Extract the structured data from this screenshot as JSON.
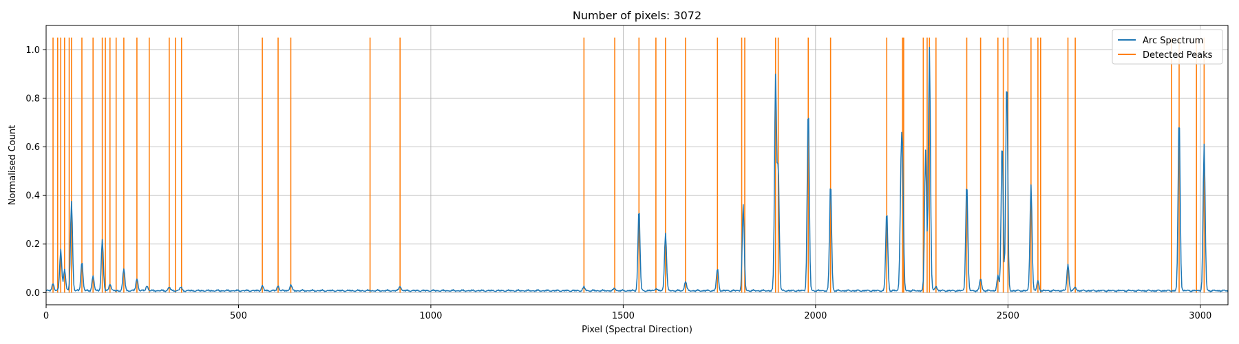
{
  "chart_data": {
    "type": "line",
    "title": "Number of pixels: 3072",
    "xlabel": "Pixel (Spectral Direction)",
    "ylabel": "Normalised Count",
    "xlim": [
      0,
      3072
    ],
    "ylim": [
      -0.05,
      1.1
    ],
    "xticks": [
      0,
      500,
      1000,
      1500,
      2000,
      2500,
      3000
    ],
    "yticks": [
      0.0,
      0.2,
      0.4,
      0.6,
      0.8,
      1.0
    ],
    "grid": true,
    "legend_position": "top-right",
    "colors": {
      "spectrum": "#1f77b4",
      "peaks": "#ff7f0e"
    },
    "series": [
      {
        "name": "Arc Spectrum",
        "baseline": 0.008,
        "lines": [
          [
            18,
            0.03
          ],
          [
            38,
            0.17
          ],
          [
            48,
            0.09
          ],
          [
            66,
            0.37
          ],
          [
            93,
            0.12
          ],
          [
            122,
            0.06
          ],
          [
            146,
            0.21
          ],
          [
            166,
            0.03
          ],
          [
            202,
            0.09
          ],
          [
            236,
            0.05
          ],
          [
            262,
            0.02
          ],
          [
            320,
            0.015
          ],
          [
            350,
            0.015
          ],
          [
            562,
            0.02
          ],
          [
            603,
            0.02
          ],
          [
            636,
            0.025
          ],
          [
            920,
            0.02
          ],
          [
            1398,
            0.015
          ],
          [
            1478,
            0.01
          ],
          [
            1541,
            0.34
          ],
          [
            1585,
            0.01
          ],
          [
            1610,
            0.24
          ],
          [
            1662,
            0.04
          ],
          [
            1745,
            0.09
          ],
          [
            1812,
            0.35
          ],
          [
            1896,
            0.88
          ],
          [
            1903,
            0.5
          ],
          [
            1981,
            0.76
          ],
          [
            2039,
            0.45
          ],
          [
            2185,
            0.33
          ],
          [
            2222,
            0.4
          ],
          [
            2226,
            0.48
          ],
          [
            2286,
            0.58
          ],
          [
            2296,
            1.0
          ],
          [
            2313,
            0.02
          ],
          [
            2393,
            0.45
          ],
          [
            2429,
            0.05
          ],
          [
            2474,
            0.06
          ],
          [
            2485,
            0.62
          ],
          [
            2497,
            0.88
          ],
          [
            2560,
            0.44
          ],
          [
            2578,
            0.04
          ],
          [
            2656,
            0.11
          ],
          [
            2675,
            0.015
          ],
          [
            2945,
            0.72
          ],
          [
            3010,
            0.6
          ]
        ]
      },
      {
        "name": "Detected Peaks",
        "top": 1.05,
        "positions": [
          18,
          30,
          38,
          48,
          60,
          66,
          93,
          122,
          146,
          154,
          166,
          182,
          202,
          236,
          268,
          320,
          336,
          352,
          562,
          603,
          636,
          842,
          920,
          1398,
          1478,
          1541,
          1585,
          1610,
          1662,
          1745,
          1808,
          1816,
          1896,
          1903,
          1981,
          2039,
          2185,
          2226,
          2229,
          2280,
          2290,
          2296,
          2313,
          2393,
          2429,
          2474,
          2488,
          2500,
          2560,
          2578,
          2585,
          2656,
          2675,
          2925,
          2945,
          2990,
          3010
        ]
      }
    ]
  }
}
